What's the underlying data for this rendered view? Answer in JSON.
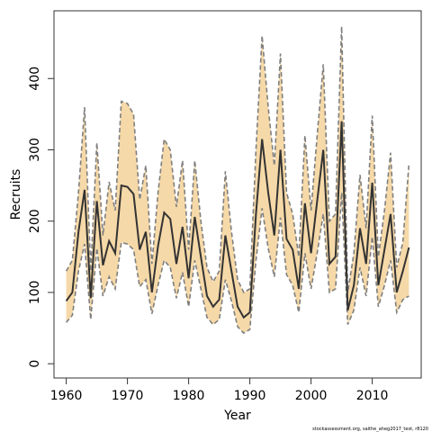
{
  "chart_data": {
    "type": "line",
    "title": "",
    "xlabel": "Year",
    "ylabel": "Recruits",
    "xlim": [
      1958,
      2018
    ],
    "ylim": [
      -20,
      495
    ],
    "x_ticks": [
      1960,
      1970,
      1980,
      1990,
      2000,
      2010
    ],
    "y_ticks": [
      0,
      100,
      200,
      300,
      400
    ],
    "grid": false,
    "legend": "none",
    "caption": "stockassessment.org, saithe_aheg2017_test, r8120",
    "colors": {
      "band": "#f6d9a8",
      "bound_line": "#7f7f7f",
      "estimate_line": "#333333"
    },
    "x": [
      1960,
      1961,
      1962,
      1963,
      1964,
      1965,
      1966,
      1967,
      1968,
      1969,
      1970,
      1971,
      1972,
      1973,
      1974,
      1975,
      1976,
      1977,
      1978,
      1979,
      1980,
      1981,
      1982,
      1983,
      1984,
      1985,
      1986,
      1987,
      1988,
      1989,
      1990,
      1991,
      1992,
      1993,
      1994,
      1995,
      1996,
      1997,
      1998,
      1999,
      2000,
      2001,
      2002,
      2003,
      2004,
      2005,
      2006,
      2007,
      2008,
      2009,
      2010,
      2011,
      2012,
      2013,
      2014,
      2015,
      2016
    ],
    "series": [
      {
        "name": "estimate",
        "values": [
          88,
          100,
          185,
          244,
          92,
          228,
          138,
          172,
          155,
          250,
          248,
          238,
          160,
          185,
          100,
          165,
          212,
          203,
          140,
          192,
          120,
          206,
          150,
          95,
          80,
          90,
          180,
          130,
          80,
          65,
          72,
          210,
          315,
          240,
          180,
          300,
          175,
          160,
          105,
          225,
          155,
          228,
          300,
          140,
          150,
          340,
          75,
          110,
          190,
          140,
          254,
          110,
          160,
          210,
          100,
          130,
          163
        ]
      },
      {
        "name": "upper",
        "values": [
          130,
          145,
          240,
          360,
          130,
          310,
          180,
          255,
          215,
          368,
          365,
          350,
          230,
          278,
          140,
          240,
          315,
          300,
          220,
          285,
          160,
          285,
          200,
          135,
          115,
          130,
          270,
          185,
          118,
          100,
          105,
          300,
          460,
          360,
          278,
          435,
          240,
          210,
          150,
          320,
          215,
          320,
          420,
          200,
          210,
          473,
          100,
          155,
          265,
          190,
          348,
          150,
          215,
          296,
          135,
          170,
          280
        ]
      },
      {
        "name": "lower",
        "values": [
          58,
          68,
          130,
          168,
          62,
          162,
          95,
          122,
          105,
          170,
          168,
          160,
          108,
          118,
          70,
          110,
          145,
          135,
          92,
          128,
          80,
          145,
          105,
          65,
          55,
          62,
          118,
          88,
          52,
          43,
          48,
          145,
          218,
          162,
          122,
          205,
          125,
          110,
          72,
          155,
          105,
          155,
          210,
          100,
          105,
          240,
          55,
          75,
          135,
          95,
          178,
          80,
          110,
          145,
          72,
          90,
          95
        ]
      }
    ]
  }
}
